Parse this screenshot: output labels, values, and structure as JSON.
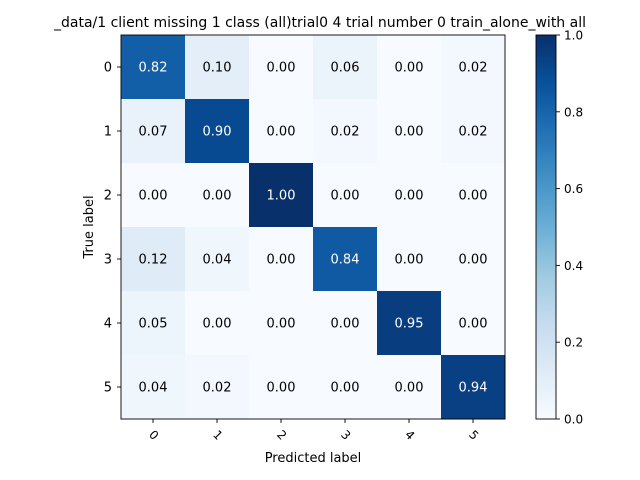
{
  "chart_data": {
    "type": "heatmap",
    "title": "_data/1 client missing 1 class (all)trial0 4 trial number 0  train_alone_with all",
    "xlabel": "Predicted label",
    "ylabel": "True label",
    "x_categories": [
      "0",
      "1",
      "2",
      "3",
      "4",
      "5"
    ],
    "y_categories": [
      "0",
      "1",
      "2",
      "3",
      "4",
      "5"
    ],
    "matrix": [
      [
        0.82,
        0.1,
        0.0,
        0.06,
        0.0,
        0.02
      ],
      [
        0.07,
        0.9,
        0.0,
        0.02,
        0.0,
        0.02
      ],
      [
        0.0,
        0.0,
        1.0,
        0.0,
        0.0,
        0.0
      ],
      [
        0.12,
        0.04,
        0.0,
        0.84,
        0.0,
        0.0
      ],
      [
        0.05,
        0.0,
        0.0,
        0.0,
        0.95,
        0.0
      ],
      [
        0.04,
        0.02,
        0.0,
        0.0,
        0.0,
        0.94
      ]
    ],
    "colormap": "Blues",
    "colorbar": {
      "range": [
        0.0,
        1.0
      ],
      "ticks": [
        "0.0",
        "0.2",
        "0.4",
        "0.6",
        "0.8",
        "1.0"
      ]
    }
  }
}
